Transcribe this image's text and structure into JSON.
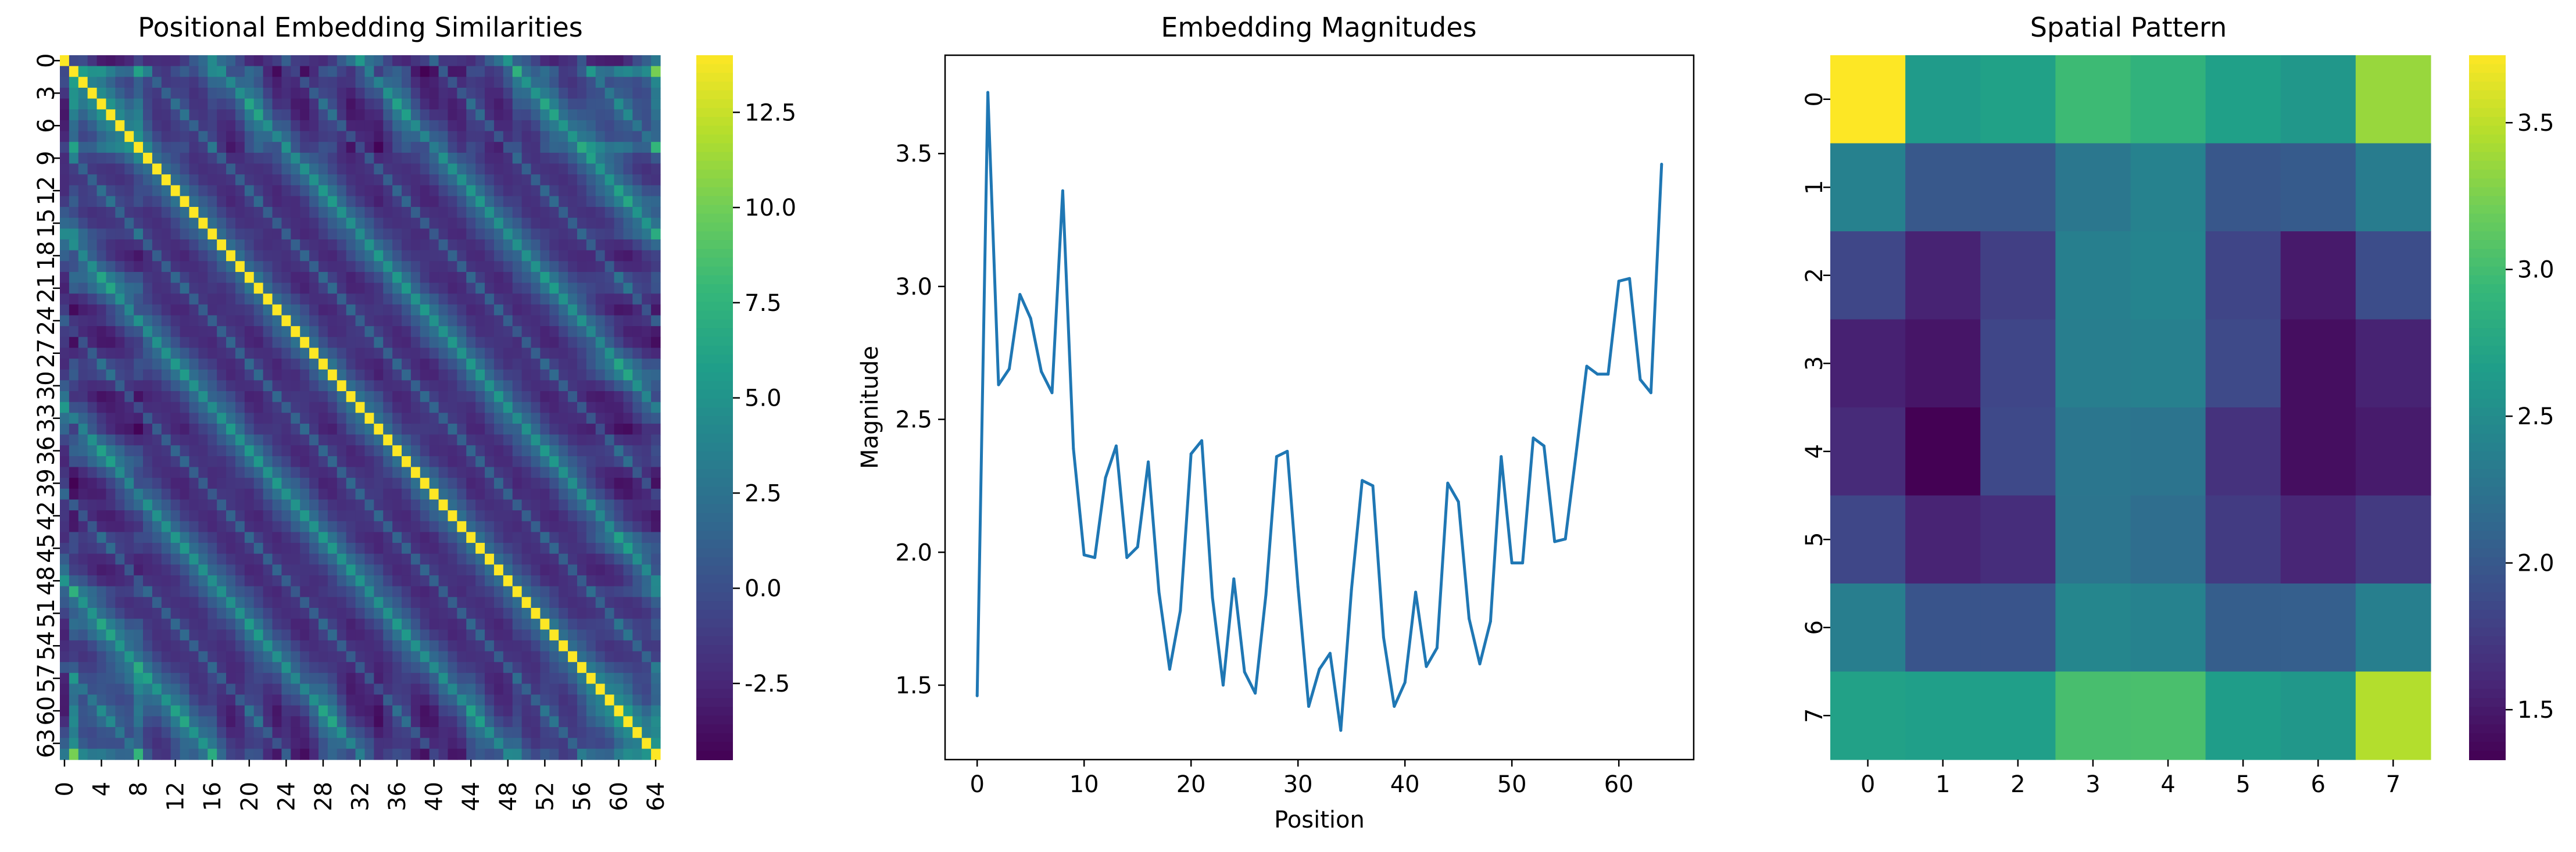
{
  "colormap": "viridis",
  "colors": {
    "line": "#1f77b4",
    "axis": "#000000",
    "background": "#ffffff"
  },
  "chart_data": [
    {
      "type": "heatmap",
      "title": "Positional Embedding Similarities",
      "xlabel": "",
      "ylabel": "",
      "size": 65,
      "x_tick_labels": [
        "0",
        "4",
        "8",
        "12",
        "16",
        "20",
        "24",
        "28",
        "32",
        "36",
        "40",
        "44",
        "48",
        "52",
        "56",
        "60",
        "64"
      ],
      "y_tick_labels": [
        "0",
        "3",
        "6",
        "9",
        "12",
        "15",
        "18",
        "21",
        "24",
        "27",
        "30",
        "33",
        "36",
        "39",
        "42",
        "45",
        "48",
        "51",
        "54",
        "57",
        "60",
        "63"
      ],
      "color_range": [
        -4.5,
        14
      ],
      "colorbar_ticks": [
        "-2.5",
        "0.0",
        "2.5",
        "5.0",
        "7.5",
        "10.0",
        "12.5"
      ],
      "diagonal_value": 14,
      "matrix_note": "symmetric similarity matrix, bright diagonal, checkerboard banding"
    },
    {
      "type": "line",
      "title": "Embedding Magnitudes",
      "xlabel": "Position",
      "ylabel": "Magnitude",
      "xlim": [
        -3,
        67
      ],
      "ylim": [
        1.22,
        3.87
      ],
      "x_ticks": [
        "0",
        "10",
        "20",
        "30",
        "40",
        "50",
        "60"
      ],
      "y_ticks": [
        "1.5",
        "2.0",
        "2.5",
        "3.0",
        "3.5"
      ],
      "x": [
        0,
        1,
        2,
        3,
        4,
        5,
        6,
        7,
        8,
        9,
        10,
        11,
        12,
        13,
        14,
        15,
        16,
        17,
        18,
        19,
        20,
        21,
        22,
        23,
        24,
        25,
        26,
        27,
        28,
        29,
        30,
        31,
        32,
        33,
        34,
        35,
        36,
        37,
        38,
        39,
        40,
        41,
        42,
        43,
        44,
        45,
        46,
        47,
        48,
        49,
        50,
        51,
        52,
        53,
        54,
        55,
        56,
        57,
        58,
        59,
        60,
        61,
        62,
        63,
        64
      ],
      "y": [
        1.46,
        3.73,
        2.63,
        2.69,
        2.97,
        2.88,
        2.68,
        2.6,
        3.36,
        2.39,
        1.99,
        1.98,
        2.28,
        2.4,
        1.98,
        2.02,
        2.34,
        1.85,
        1.56,
        1.78,
        2.37,
        2.42,
        1.83,
        1.5,
        1.9,
        1.55,
        1.47,
        1.84,
        2.36,
        2.38,
        1.87,
        1.42,
        1.56,
        1.62,
        1.33,
        1.86,
        2.27,
        2.25,
        1.68,
        1.42,
        1.51,
        1.85,
        1.57,
        1.64,
        2.26,
        2.19,
        1.75,
        1.58,
        1.74,
        2.36,
        1.96,
        1.96,
        2.43,
        2.4,
        2.04,
        2.05,
        2.37,
        2.7,
        2.67,
        2.67,
        3.02,
        3.03,
        2.65,
        2.6,
        3.46
      ]
    },
    {
      "type": "heatmap",
      "title": "Spatial Pattern",
      "xlabel": "",
      "ylabel": "",
      "x_tick_labels": [
        "0",
        "1",
        "2",
        "3",
        "4",
        "5",
        "6",
        "7"
      ],
      "y_tick_labels": [
        "0",
        "1",
        "2",
        "3",
        "4",
        "5",
        "6",
        "7"
      ],
      "color_range": [
        1.33,
        3.73
      ],
      "colorbar_ticks": [
        "1.5",
        "2.0",
        "2.5",
        "3.0",
        "3.5"
      ],
      "values": [
        [
          3.73,
          2.63,
          2.69,
          2.97,
          2.88,
          2.68,
          2.6,
          3.36
        ],
        [
          2.39,
          1.99,
          1.98,
          2.28,
          2.4,
          1.98,
          2.02,
          2.34
        ],
        [
          1.85,
          1.56,
          1.78,
          2.37,
          2.42,
          1.83,
          1.5,
          1.9
        ],
        [
          1.55,
          1.47,
          1.84,
          2.36,
          2.38,
          1.87,
          1.42,
          1.56
        ],
        [
          1.62,
          1.33,
          1.86,
          2.27,
          2.25,
          1.68,
          1.42,
          1.51
        ],
        [
          1.85,
          1.57,
          1.64,
          2.26,
          2.19,
          1.75,
          1.58,
          1.74
        ],
        [
          2.36,
          1.96,
          1.96,
          2.43,
          2.4,
          2.04,
          2.05,
          2.37
        ],
        [
          2.7,
          2.67,
          2.67,
          3.02,
          3.03,
          2.65,
          2.6,
          3.46
        ]
      ]
    }
  ]
}
